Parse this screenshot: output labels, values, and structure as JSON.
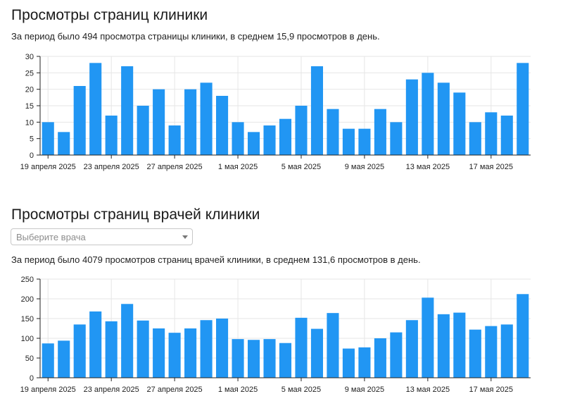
{
  "sections": [
    {
      "title": "Просмотры страниц клиники",
      "summary": "За период было 494 просмотра страницы клиники, в среднем 15,9 просмотров в день."
    },
    {
      "title": "Просмотры страниц врачей клиники",
      "summary": "За период было 4079 просмотров страниц врачей клиники, в среднем 131,6 просмотров в день.",
      "select": {
        "placeholder": "Выберите врача"
      }
    }
  ],
  "colors": {
    "bar": "#2196f3",
    "grid": "#e6e6e6",
    "axis": "#222222"
  },
  "chart_data": [
    {
      "type": "bar",
      "title": "Просмотры страниц клиники",
      "xlabel": "",
      "ylabel": "",
      "ylim": [
        0,
        30
      ],
      "yticks": [
        0,
        5,
        10,
        15,
        20,
        25,
        30
      ],
      "grid": true,
      "x_tick_labels": [
        "19 апреля 2025",
        "23 апреля 2025",
        "27 апреля 2025",
        "1 мая 2025",
        "5 мая 2025",
        "9 мая 2025",
        "13 мая 2025",
        "17 мая 2025"
      ],
      "x_tick_every": 4,
      "values": [
        10,
        7,
        21,
        28,
        12,
        27,
        15,
        20,
        9,
        20,
        22,
        18,
        10,
        7,
        9,
        11,
        15,
        27,
        14,
        8,
        8,
        14,
        10,
        23,
        25,
        22,
        19,
        10,
        13,
        12,
        28
      ]
    },
    {
      "type": "bar",
      "title": "Просмотры страниц врачей клиники",
      "xlabel": "",
      "ylabel": "",
      "ylim": [
        0,
        250
      ],
      "yticks": [
        0,
        50,
        100,
        150,
        200,
        250
      ],
      "grid": true,
      "x_tick_labels": [
        "19 апреля 2025",
        "23 апреля 2025",
        "27 апреля 2025",
        "1 мая 2025",
        "5 мая 2025",
        "9 мая 2025",
        "13 мая 2025",
        "17 мая 2025"
      ],
      "x_tick_every": 4,
      "values": [
        87,
        94,
        135,
        168,
        143,
        187,
        145,
        125,
        114,
        125,
        146,
        150,
        98,
        96,
        98,
        88,
        152,
        124,
        164,
        74,
        77,
        100,
        115,
        146,
        203,
        161,
        165,
        122,
        131,
        135,
        212
      ]
    }
  ]
}
